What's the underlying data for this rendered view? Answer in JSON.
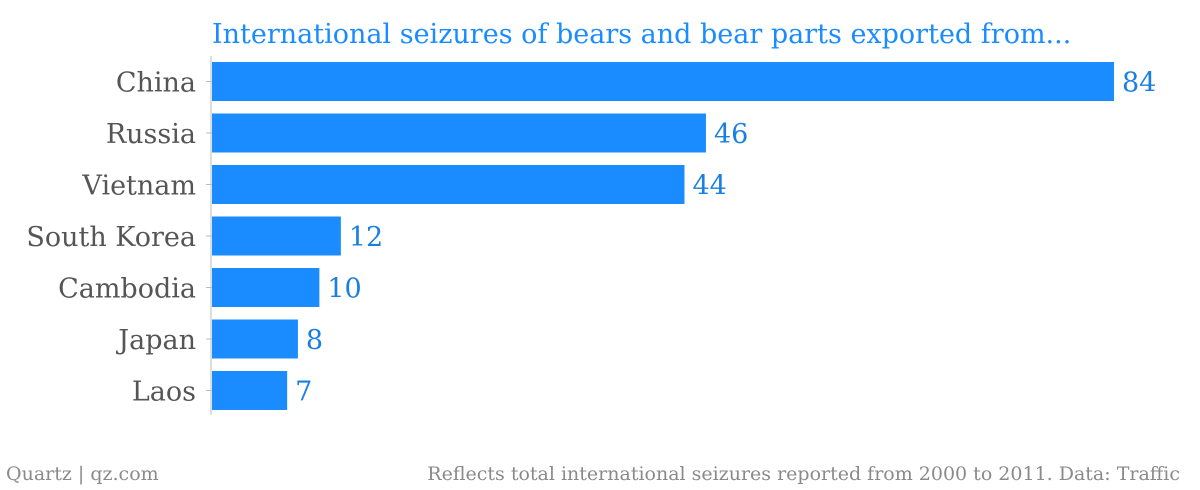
{
  "colors": {
    "bar": "#1a8cff",
    "title": "#1a8cff",
    "value_label": "#1a7fe0",
    "category_label": "#555555",
    "footer": "#8a8a8a",
    "axis": "#bbbbbb"
  },
  "chart_data": {
    "type": "bar",
    "orientation": "horizontal",
    "title": "International seizures of bears and bear parts exported from...",
    "categories": [
      "China",
      "Russia",
      "Vietnam",
      "South Korea",
      "Cambodia",
      "Japan",
      "Laos"
    ],
    "values": [
      84,
      46,
      44,
      12,
      10,
      8,
      7
    ],
    "xlim": [
      0,
      84
    ],
    "grid": false,
    "data_labels": true
  },
  "footer": {
    "source": "Quartz | qz.com",
    "note": "Reflects total international seizures reported from 2000 to 2011. Data: Traffic"
  }
}
